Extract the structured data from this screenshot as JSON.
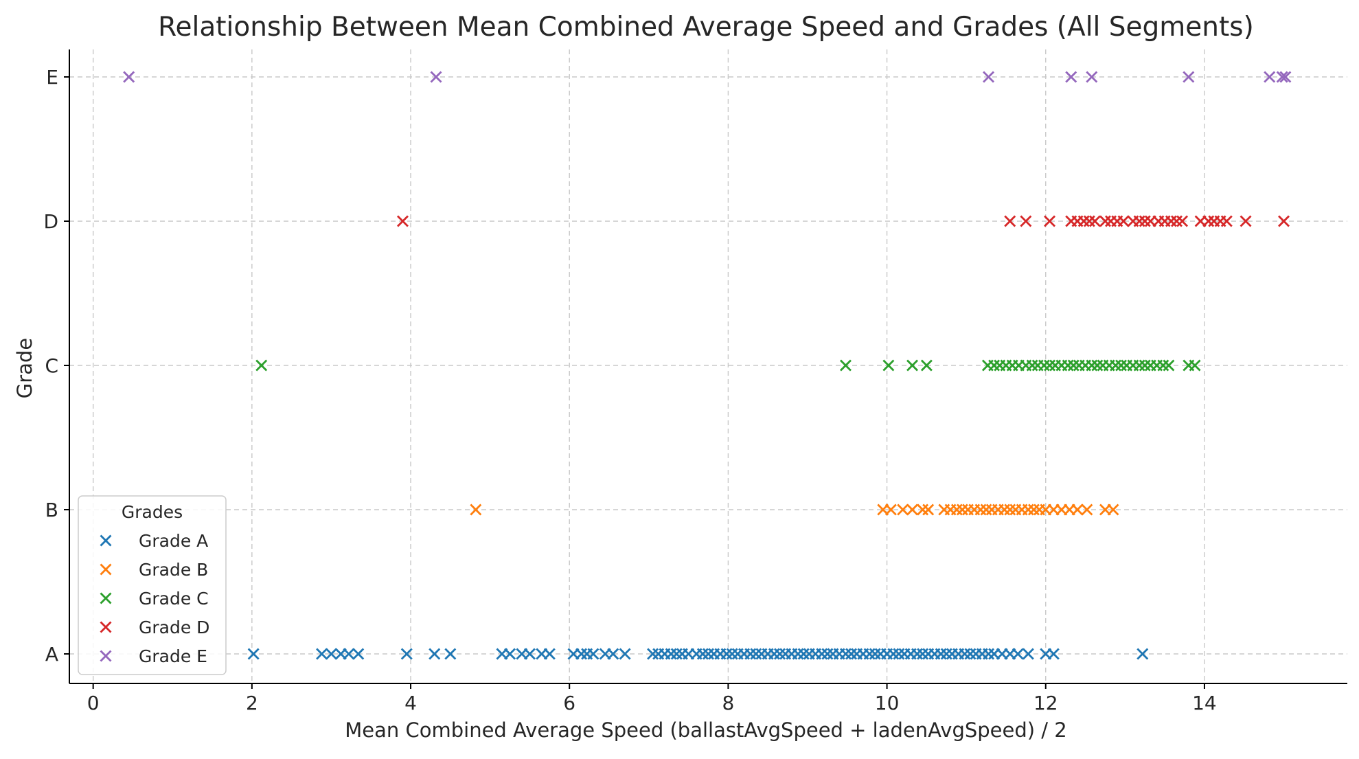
{
  "chart_data": {
    "type": "scatter",
    "title": "Relationship Between Mean Combined Average Speed and Grades (All Segments)",
    "xlabel": "Mean Combined Average Speed (ballastAvgSpeed + ladenAvgSpeed) / 2",
    "ylabel": "Grade",
    "xlim": [
      -0.3,
      15.8
    ],
    "x_ticks": [
      0,
      2,
      4,
      6,
      8,
      10,
      12,
      14
    ],
    "y_categories": [
      "A",
      "B",
      "C",
      "D",
      "E"
    ],
    "grid": true,
    "marker": "x",
    "legend": {
      "title": "Grades",
      "placement": "lower-left"
    },
    "series": [
      {
        "name": "Grade A",
        "y": "A",
        "color": "#1f77b4",
        "x": [
          2.02,
          2.88,
          3.0,
          3.12,
          3.22,
          3.34,
          3.95,
          4.3,
          4.5,
          5.15,
          5.25,
          5.4,
          5.5,
          5.65,
          5.75,
          6.05,
          6.15,
          6.22,
          6.3,
          6.45,
          6.55,
          6.7,
          7.05,
          7.12,
          7.2,
          7.28,
          7.35,
          7.42,
          7.5,
          7.6,
          7.68,
          7.75,
          7.82,
          7.9,
          7.98,
          8.05,
          8.12,
          8.2,
          8.28,
          8.35,
          8.42,
          8.5,
          8.58,
          8.65,
          8.72,
          8.8,
          8.88,
          8.95,
          9.02,
          9.1,
          9.18,
          9.25,
          9.32,
          9.4,
          9.48,
          9.55,
          9.62,
          9.7,
          9.78,
          9.85,
          9.92,
          10.0,
          10.08,
          10.15,
          10.22,
          10.3,
          10.38,
          10.45,
          10.52,
          10.6,
          10.68,
          10.75,
          10.82,
          10.9,
          10.98,
          11.05,
          11.12,
          11.2,
          11.28,
          11.35,
          11.45,
          11.55,
          11.65,
          11.78,
          12.0,
          12.1,
          13.22
        ]
      },
      {
        "name": "Grade B",
        "y": "B",
        "color": "#ff7f0e",
        "x": [
          4.82,
          9.95,
          10.05,
          10.2,
          10.32,
          10.45,
          10.52,
          10.72,
          10.8,
          10.88,
          10.95,
          11.02,
          11.1,
          11.18,
          11.25,
          11.32,
          11.4,
          11.48,
          11.55,
          11.62,
          11.7,
          11.78,
          11.85,
          11.92,
          12.0,
          12.1,
          12.2,
          12.3,
          12.4,
          12.52,
          12.75,
          12.85
        ]
      },
      {
        "name": "Grade C",
        "y": "C",
        "color": "#2ca02c",
        "x": [
          2.12,
          9.48,
          10.02,
          10.32,
          10.5,
          11.27,
          11.35,
          11.42,
          11.5,
          11.58,
          11.66,
          11.75,
          11.83,
          11.9,
          11.98,
          12.05,
          12.12,
          12.2,
          12.28,
          12.35,
          12.42,
          12.5,
          12.58,
          12.65,
          12.72,
          12.8,
          12.88,
          12.95,
          13.02,
          13.1,
          13.18,
          13.25,
          13.32,
          13.4,
          13.48,
          13.55,
          13.8,
          13.88
        ]
      },
      {
        "name": "Grade D",
        "y": "D",
        "color": "#d62728",
        "x": [
          3.9,
          11.55,
          11.75,
          12.05,
          12.32,
          12.4,
          12.48,
          12.55,
          12.62,
          12.75,
          12.82,
          12.9,
          12.98,
          13.1,
          13.18,
          13.25,
          13.32,
          13.42,
          13.5,
          13.58,
          13.65,
          13.72,
          13.95,
          14.05,
          14.12,
          14.2,
          14.28,
          14.52,
          15.0
        ]
      },
      {
        "name": "Grade E",
        "y": "E",
        "color": "#9467bd",
        "x": [
          0.45,
          4.32,
          11.28,
          12.32,
          12.58,
          13.8,
          14.82,
          14.98,
          15.02
        ]
      }
    ]
  }
}
